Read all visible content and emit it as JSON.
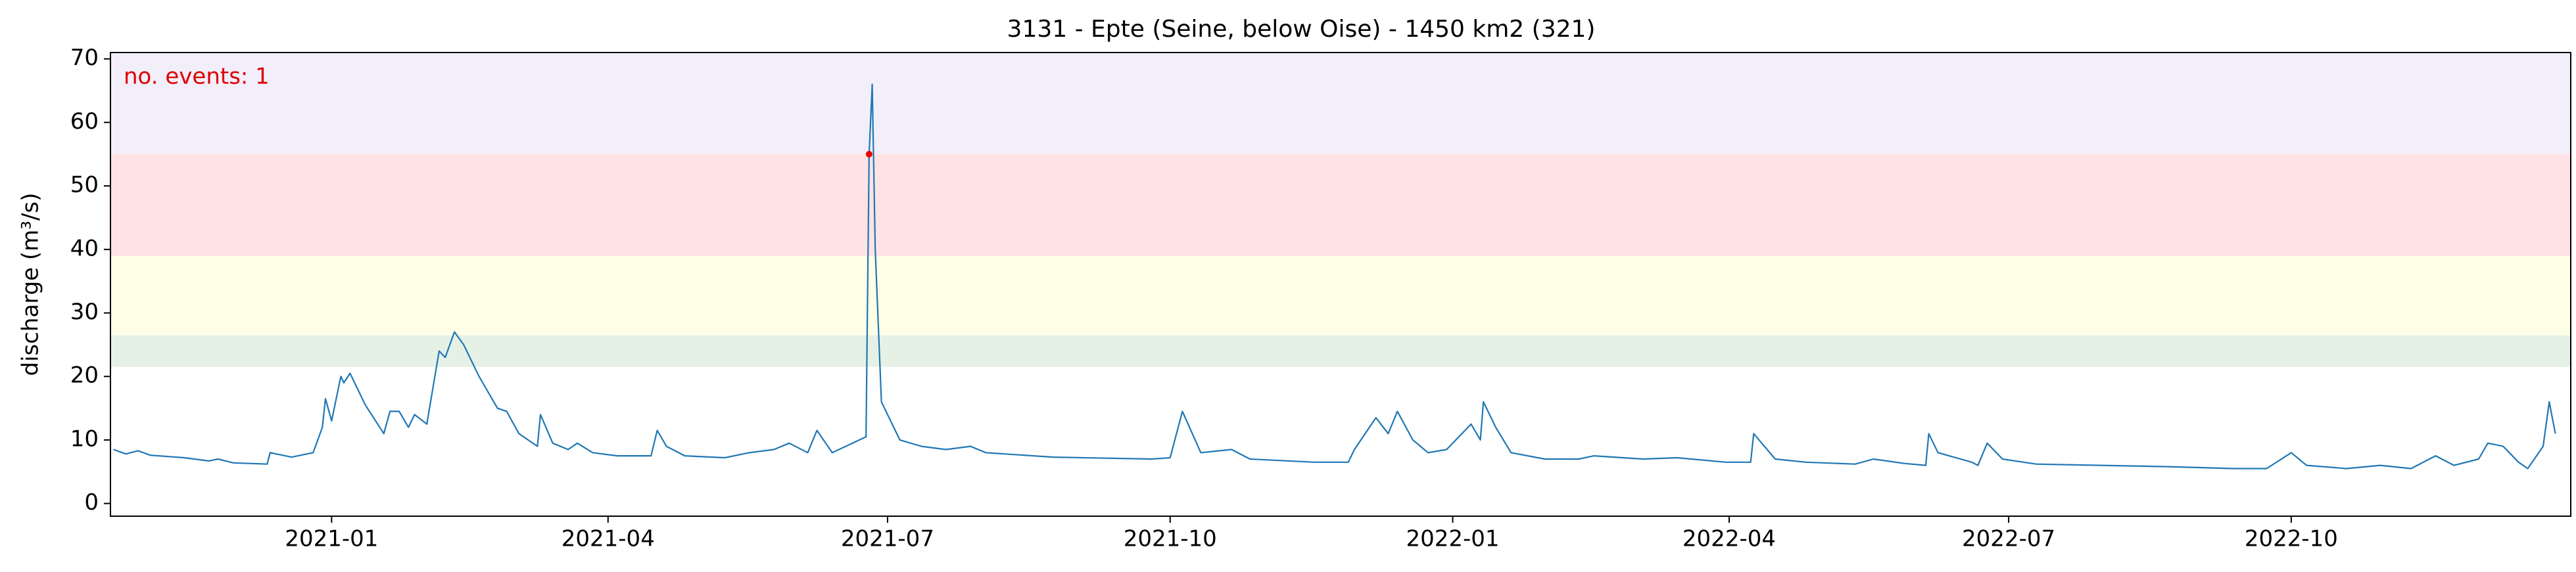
{
  "chart_data": {
    "type": "line",
    "title": "3131 - Epte (Seine, below Oise) - 1450 km2 (321)",
    "ylabel": "discharge (m³/s)",
    "annotation": "no. events: 1",
    "annotation_color": "#dd0000",
    "color": "#1f77b4",
    "event_color": "#ee0000",
    "xlim": [
      "2020-10-21",
      "2022-12-31"
    ],
    "ylim": [
      -2,
      71
    ],
    "yticks": [
      0,
      10,
      20,
      30,
      40,
      50,
      60,
      70
    ],
    "xticks": [
      "2021-01",
      "2021-04",
      "2021-07",
      "2021-10",
      "2022-01",
      "2022-04",
      "2022-07",
      "2022-10"
    ],
    "bands": [
      {
        "range": [
          21.5,
          26.5
        ],
        "color": "#e6f1e6"
      },
      {
        "range": [
          26.5,
          39
        ],
        "color": "#fefee6"
      },
      {
        "range": [
          39,
          55
        ],
        "color": "#ffe2e5"
      },
      {
        "range": [
          55,
          71
        ],
        "color": "#f2effa"
      }
    ],
    "events": [
      {
        "x": "2021-06-25",
        "value": 55
      }
    ],
    "x": [
      "2020-10-22",
      "2020-10-26",
      "2020-10-30",
      "2020-11-03",
      "2020-11-14",
      "2020-11-22",
      "2020-11-25",
      "2020-11-30",
      "2020-12-11",
      "2020-12-12",
      "2020-12-19",
      "2020-12-26",
      "2020-12-29",
      "2020-12-30",
      "2021-01-01",
      "2021-01-04",
      "2021-01-05",
      "2021-01-07",
      "2021-01-12",
      "2021-01-18",
      "2021-01-20",
      "2021-01-23",
      "2021-01-26",
      "2021-01-28",
      "2021-02-01",
      "2021-02-05",
      "2021-02-07",
      "2021-02-10",
      "2021-02-13",
      "2021-02-18",
      "2021-02-24",
      "2021-02-27",
      "2021-03-03",
      "2021-03-09",
      "2021-03-10",
      "2021-03-14",
      "2021-03-19",
      "2021-03-22",
      "2021-03-27",
      "2021-04-04",
      "2021-04-15",
      "2021-04-17",
      "2021-04-20",
      "2021-04-26",
      "2021-05-09",
      "2021-05-17",
      "2021-05-25",
      "2021-05-30",
      "2021-06-05",
      "2021-06-08",
      "2021-06-13",
      "2021-06-24",
      "2021-06-25",
      "2021-06-26",
      "2021-06-27",
      "2021-06-29",
      "2021-07-05",
      "2021-07-12",
      "2021-07-20",
      "2021-07-28",
      "2021-08-02",
      "2021-08-24",
      "2021-09-25",
      "2021-10-01",
      "2021-10-05",
      "2021-10-11",
      "2021-10-21",
      "2021-10-27",
      "2021-11-17",
      "2021-11-28",
      "2021-11-30",
      "2021-12-07",
      "2021-12-11",
      "2021-12-14",
      "2021-12-19",
      "2021-12-24",
      "2021-12-30",
      "2022-01-07",
      "2022-01-10",
      "2022-01-11",
      "2022-01-15",
      "2022-01-20",
      "2022-01-31",
      "2022-02-11",
      "2022-02-16",
      "2022-03-04",
      "2022-03-15",
      "2022-03-31",
      "2022-04-08",
      "2022-04-09",
      "2022-04-16",
      "2022-04-26",
      "2022-05-12",
      "2022-05-18",
      "2022-05-28",
      "2022-06-04",
      "2022-06-05",
      "2022-06-08",
      "2022-06-19",
      "2022-06-21",
      "2022-06-24",
      "2022-06-29",
      "2022-07-10",
      "2022-07-31",
      "2022-08-22",
      "2022-09-12",
      "2022-09-23",
      "2022-10-01",
      "2022-10-06",
      "2022-10-19",
      "2022-10-30",
      "2022-11-09",
      "2022-11-17",
      "2022-11-23",
      "2022-12-01",
      "2022-12-04",
      "2022-12-09",
      "2022-12-14",
      "2022-12-17",
      "2022-12-22",
      "2022-12-24",
      "2022-12-26"
    ],
    "values": [
      8.5,
      7.8,
      8.3,
      7.6,
      7.2,
      6.7,
      7.0,
      6.4,
      6.2,
      8.0,
      7.3,
      8.0,
      12,
      16.5,
      13,
      20,
      19,
      20.5,
      15.5,
      11,
      14.5,
      14.5,
      12,
      14,
      12.5,
      24,
      23,
      27,
      25,
      20,
      15,
      14.5,
      11,
      9,
      14,
      9.5,
      8.5,
      9.5,
      8,
      7.5,
      7.5,
      11.5,
      9,
      7.5,
      7.2,
      8,
      8.5,
      9.5,
      8,
      11.5,
      8,
      10.5,
      55,
      66,
      40,
      16,
      10,
      9,
      8.5,
      9,
      8,
      7.3,
      7,
      7.2,
      14.5,
      8,
      8.5,
      7,
      6.5,
      6.5,
      8.5,
      13.5,
      11,
      14.5,
      10,
      8,
      8.5,
      12.5,
      10,
      16,
      12,
      8,
      7,
      7,
      7.5,
      7,
      7.2,
      6.5,
      6.5,
      11,
      7,
      6.5,
      6.2,
      7,
      6.3,
      6,
      11,
      8,
      6.5,
      6,
      9.5,
      7,
      6.2,
      6,
      5.8,
      5.5,
      5.5,
      8,
      6,
      5.5,
      6,
      5.5,
      7.5,
      6,
      7,
      9.5,
      9,
      6.5,
      5.5,
      9,
      16,
      11
    ]
  }
}
